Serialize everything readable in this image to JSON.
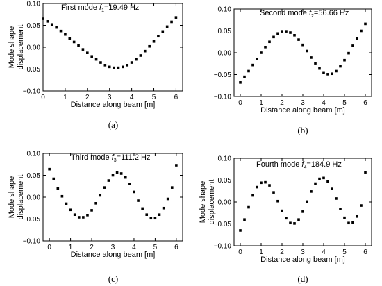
{
  "chart_data": [
    {
      "type": "scatter",
      "caption": "(a)",
      "title_prefix": "First mode ",
      "title_sym": "f",
      "title_sub": "1",
      "title_rest": "=19.49 Hz",
      "xlabel": "Distance along beam [m]",
      "ylabel_line1": "Mode shape",
      "ylabel_line2": "displacement",
      "xlim": [
        0,
        6.3
      ],
      "ylim": [
        -0.1,
        0.1
      ],
      "xticks": [
        0,
        1,
        2,
        3,
        4,
        5,
        6
      ],
      "yticks": [
        -0.1,
        -0.05,
        0.0,
        0.05,
        0.1
      ],
      "ytick_labels": [
        "−0.10",
        "−0.05",
        "0.00",
        "0.05",
        "0.10"
      ],
      "marker_color": "#000000",
      "series": [
        {
          "x": [
            0.0,
            0.2,
            0.4,
            0.6,
            0.8,
            1.0,
            1.2,
            1.4,
            1.6,
            1.8,
            2.0,
            2.2,
            2.4,
            2.6,
            2.8,
            3.0,
            3.2,
            3.4,
            3.6,
            3.8,
            4.0,
            4.2,
            4.4,
            4.6,
            4.8,
            5.0,
            5.2,
            5.4,
            5.6,
            5.8,
            6.0
          ],
          "y": [
            0.065,
            0.059,
            0.052,
            0.045,
            0.037,
            0.029,
            0.02,
            0.012,
            0.004,
            -0.005,
            -0.013,
            -0.021,
            -0.028,
            -0.035,
            -0.041,
            -0.045,
            -0.047,
            -0.047,
            -0.045,
            -0.041,
            -0.035,
            -0.028,
            -0.019,
            -0.009,
            0.002,
            0.013,
            0.025,
            0.036,
            0.047,
            0.058,
            0.068
          ]
        }
      ]
    },
    {
      "type": "scatter",
      "caption": "(b)",
      "title_prefix": "Second mode ",
      "title_sym": "f",
      "title_sub": "2",
      "title_rest": "=56.66 Hz",
      "xlabel": "Distance along beam [m]",
      "ylabel_line1": "",
      "ylabel_line2": "",
      "xlim": [
        -0.3,
        6.3
      ],
      "ylim": [
        -0.1,
        0.1
      ],
      "xticks": [
        0,
        1,
        2,
        3,
        4,
        5,
        6
      ],
      "yticks": [
        -0.1,
        -0.05,
        0.0,
        0.05,
        0.1
      ],
      "ytick_labels": [
        "−0.10",
        "−0.05",
        "0.00",
        "0.05",
        "0.10"
      ],
      "marker_color": "#000000",
      "series": [
        {
          "x": [
            0.0,
            0.2,
            0.4,
            0.6,
            0.8,
            1.0,
            1.2,
            1.4,
            1.6,
            1.8,
            2.0,
            2.2,
            2.4,
            2.6,
            2.8,
            3.0,
            3.2,
            3.4,
            3.6,
            3.8,
            4.0,
            4.2,
            4.4,
            4.6,
            4.8,
            5.0,
            5.2,
            5.4,
            5.6,
            5.8,
            6.0
          ],
          "y": [
            -0.068,
            -0.055,
            -0.042,
            -0.028,
            -0.014,
            0.0,
            0.013,
            0.025,
            0.036,
            0.044,
            0.049,
            0.049,
            0.046,
            0.04,
            0.03,
            0.018,
            0.004,
            -0.011,
            -0.024,
            -0.036,
            -0.045,
            -0.049,
            -0.048,
            -0.042,
            -0.031,
            -0.017,
            -0.001,
            0.016,
            0.033,
            0.05,
            0.066
          ]
        }
      ]
    },
    {
      "type": "scatter",
      "caption": "(c)",
      "title_prefix": "Third mode ",
      "title_sym": "f",
      "title_sub": "3",
      "title_rest": "=111.2 Hz",
      "xlabel": "Distance along beam [m]",
      "ylabel_line1": "Mode shape",
      "ylabel_line2": "displacement",
      "xlim": [
        -0.3,
        6.3
      ],
      "ylim": [
        -0.1,
        0.1
      ],
      "xticks": [
        0,
        1,
        2,
        3,
        4,
        5,
        6
      ],
      "yticks": [
        -0.1,
        -0.05,
        0.0,
        0.05,
        0.1
      ],
      "ytick_labels": [
        "−0.10",
        "−0.05",
        "0.00",
        "0.05",
        "0.10"
      ],
      "marker_color": "#000000",
      "series": [
        {
          "x": [
            0.0,
            0.2,
            0.4,
            0.6,
            0.8,
            1.0,
            1.2,
            1.4,
            1.6,
            1.8,
            2.0,
            2.2,
            2.4,
            2.6,
            2.8,
            3.0,
            3.2,
            3.4,
            3.6,
            3.8,
            4.0,
            4.2,
            4.4,
            4.6,
            4.8,
            5.0,
            5.2,
            5.4,
            5.6,
            5.8,
            6.0
          ],
          "y": [
            0.064,
            0.042,
            0.02,
            0.002,
            -0.015,
            -0.029,
            -0.04,
            -0.046,
            -0.046,
            -0.041,
            -0.03,
            -0.014,
            0.004,
            0.022,
            0.038,
            0.05,
            0.056,
            0.054,
            0.045,
            0.03,
            0.012,
            -0.008,
            -0.026,
            -0.04,
            -0.048,
            -0.048,
            -0.04,
            -0.025,
            -0.004,
            0.022,
            0.073
          ]
        }
      ]
    },
    {
      "type": "scatter",
      "caption": "(d)",
      "title_prefix": "Fourth mode ",
      "title_sym": "f",
      "title_sub": "4",
      "title_rest": "=184.9 Hz",
      "xlabel": "Distance along beam [m]",
      "ylabel_line1": "Mode shape",
      "ylabel_line2": "displacement",
      "xlim": [
        -0.3,
        6.3
      ],
      "ylim": [
        -0.1,
        0.1
      ],
      "xticks": [
        0,
        1,
        2,
        3,
        4,
        5,
        6
      ],
      "yticks": [
        -0.1,
        -0.05,
        0.0,
        0.05,
        0.1
      ],
      "ytick_labels": [
        "−0.10",
        "−0.05",
        "0.00",
        "0.05",
        "0.10"
      ],
      "marker_color": "#000000",
      "series": [
        {
          "x": [
            0.0,
            0.2,
            0.4,
            0.6,
            0.8,
            1.0,
            1.2,
            1.4,
            1.6,
            1.8,
            2.0,
            2.2,
            2.4,
            2.6,
            2.8,
            3.0,
            3.2,
            3.4,
            3.6,
            3.8,
            4.0,
            4.2,
            4.4,
            4.6,
            4.8,
            5.0,
            5.2,
            5.4,
            5.6,
            5.8,
            6.0
          ],
          "y": [
            -0.065,
            -0.04,
            -0.012,
            0.015,
            0.034,
            0.044,
            0.045,
            0.038,
            0.022,
            0.002,
            -0.02,
            -0.037,
            -0.048,
            -0.049,
            -0.04,
            -0.022,
            0.001,
            0.024,
            0.042,
            0.053,
            0.055,
            0.047,
            0.03,
            0.008,
            -0.016,
            -0.036,
            -0.048,
            -0.047,
            -0.033,
            -0.008,
            0.068
          ]
        }
      ]
    }
  ]
}
